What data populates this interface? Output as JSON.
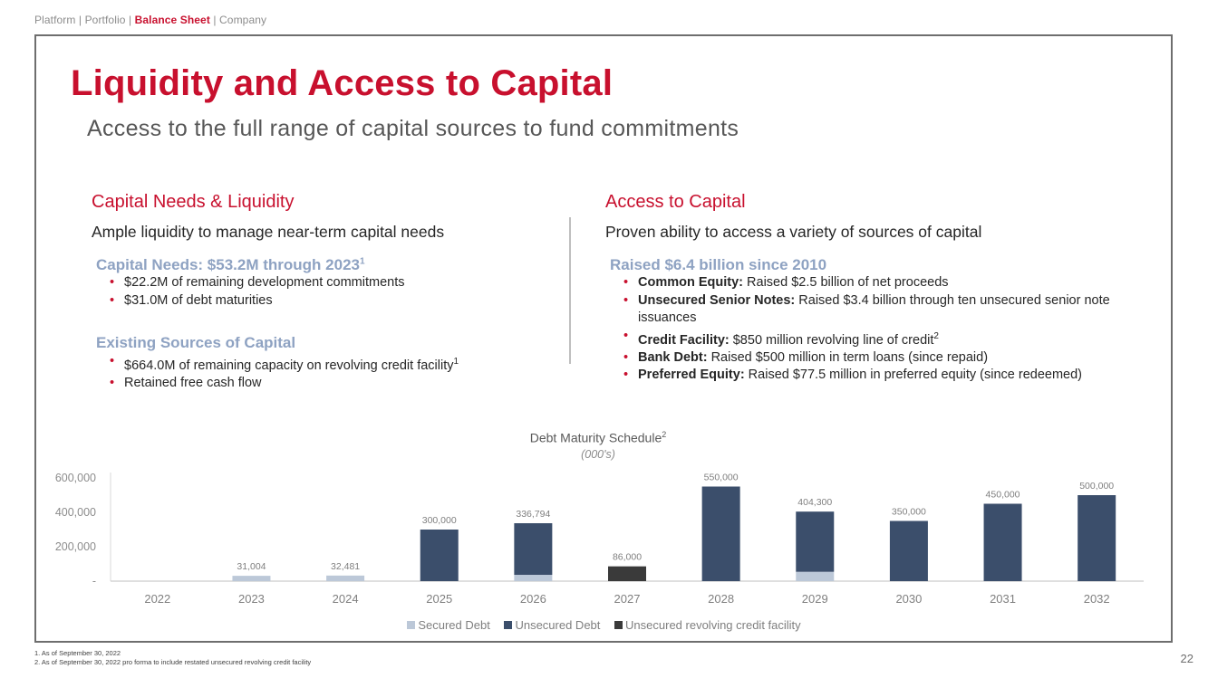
{
  "nav": {
    "items": [
      "Platform",
      "Portfolio",
      "Balance Sheet",
      "Company"
    ],
    "active": "Balance Sheet"
  },
  "title": "Liquidity and Access to Capital",
  "subtitle": "Access to the full range of capital sources to fund commitments",
  "left": {
    "heading": "Capital Needs & Liquidity",
    "subheading": "Ample liquidity to manage near-term capital needs",
    "needs_heading": "Capital Needs: $53.2M through 2023",
    "needs_sup": "1",
    "needs_items": [
      "$22.2M of remaining development commitments",
      "$31.0M of debt maturities"
    ],
    "sources_heading": "Existing Sources of Capital",
    "sources_item1": "$664.0M of remaining capacity on revolving credit facility",
    "sources_item1_sup": "1",
    "sources_item2": "Retained free cash flow"
  },
  "right": {
    "heading": "Access to Capital",
    "subheading": "Proven ability to access a variety of sources of capital",
    "raised_heading": "Raised $6.4 billion since 2010",
    "items": [
      {
        "label": "Common Equity:",
        "text": " Raised $2.5 billion of net proceeds",
        "sup": ""
      },
      {
        "label": "Unsecured Senior Notes:",
        "text": " Raised $3.4 billion through ten unsecured senior note issuances",
        "sup": ""
      },
      {
        "label": "Credit Facility:",
        "text": " $850 million revolving line of credit",
        "sup": "2"
      },
      {
        "label": "Bank Debt:",
        "text": " Raised $500 million in term loans (since repaid)",
        "sup": ""
      },
      {
        "label": "Preferred Equity:",
        "text": " Raised $77.5 million in preferred equity (since redeemed)",
        "sup": ""
      }
    ]
  },
  "chart_data": {
    "type": "bar",
    "stacked": true,
    "title": "Debt Maturity Schedule",
    "title_sup": "2",
    "units": "(000's)",
    "categories": [
      "2022",
      "2023",
      "2024",
      "2025",
      "2026",
      "2027",
      "2028",
      "2029",
      "2030",
      "2031",
      "2032"
    ],
    "series": [
      {
        "name": "Secured Debt",
        "color": "#bcc8d8",
        "values": [
          0,
          31004,
          32481,
          0,
          36794,
          0,
          0,
          54300,
          0,
          0,
          0
        ]
      },
      {
        "name": "Unsecured Debt",
        "color": "#3b4e6b",
        "values": [
          0,
          0,
          0,
          300000,
          300000,
          0,
          550000,
          350000,
          350000,
          450000,
          500000
        ]
      },
      {
        "name": "Unsecured revolving credit facility",
        "color": "#3a3a3a",
        "values": [
          0,
          0,
          0,
          0,
          0,
          86000,
          0,
          0,
          0,
          0,
          0
        ]
      }
    ],
    "totals": [
      "",
      "31,004",
      "32,481",
      "300,000",
      "336,794",
      "86,000",
      "550,000",
      "404,300",
      "350,000",
      "450,000",
      "500,000"
    ],
    "y_ticks": [
      {
        "value": 0,
        "label": "-"
      },
      {
        "value": 200000,
        "label": "200,000"
      },
      {
        "value": 400000,
        "label": "400,000"
      },
      {
        "value": 600000,
        "label": "600,000"
      }
    ],
    "ylim": [
      0,
      600000
    ],
    "legend_position": "bottom"
  },
  "footnotes": [
    "1.    As of September 30, 2022",
    "2.    As of September 30, 2022 pro forma to include restated  unsecured revolving credit facility"
  ],
  "page_number": "22"
}
